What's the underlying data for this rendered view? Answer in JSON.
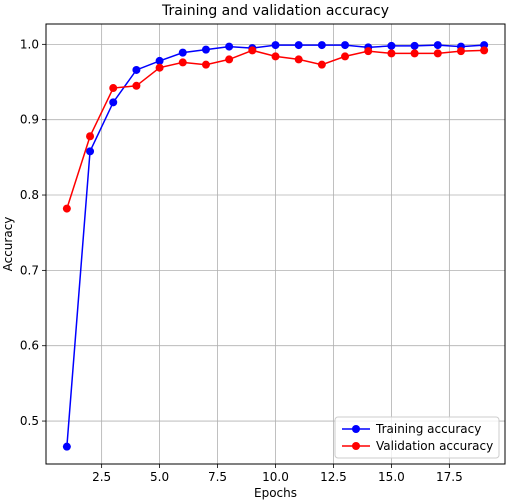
{
  "chart_data": {
    "type": "line",
    "title": "Training and validation accuracy",
    "xlabel": "Epochs",
    "ylabel": "Accuracy",
    "xlim": [
      0.1,
      19.9
    ],
    "ylim": [
      0.443,
      1.027
    ],
    "xticks": [
      2.5,
      5.0,
      7.5,
      10.0,
      12.5,
      15.0,
      17.5
    ],
    "xtick_labels": [
      "2.5",
      "5.0",
      "7.5",
      "10.0",
      "12.5",
      "15.0",
      "17.5"
    ],
    "yticks": [
      0.5,
      0.6,
      0.7,
      0.8,
      0.9,
      1.0
    ],
    "ytick_labels": [
      "0.5",
      "0.6",
      "0.7",
      "0.8",
      "0.9",
      "1.0"
    ],
    "grid": true,
    "legend_position": "lower-right",
    "x": [
      1,
      2,
      3,
      4,
      5,
      6,
      7,
      8,
      9,
      10,
      11,
      12,
      13,
      14,
      15,
      16,
      17,
      18,
      19
    ],
    "series": [
      {
        "name": "Training accuracy",
        "color": "#0000ff",
        "marker": "circle",
        "values": [
          0.466,
          0.858,
          0.923,
          0.966,
          0.978,
          0.989,
          0.993,
          0.997,
          0.995,
          0.999,
          0.999,
          0.999,
          0.999,
          0.996,
          0.998,
          0.998,
          0.999,
          0.997,
          0.999
        ]
      },
      {
        "name": "Validation accuracy",
        "color": "#ff0000",
        "marker": "circle",
        "values": [
          0.782,
          0.878,
          0.942,
          0.945,
          0.969,
          0.976,
          0.973,
          0.98,
          0.992,
          0.984,
          0.98,
          0.973,
          0.984,
          0.991,
          0.988,
          0.988,
          0.988,
          0.991,
          0.992
        ]
      }
    ]
  }
}
